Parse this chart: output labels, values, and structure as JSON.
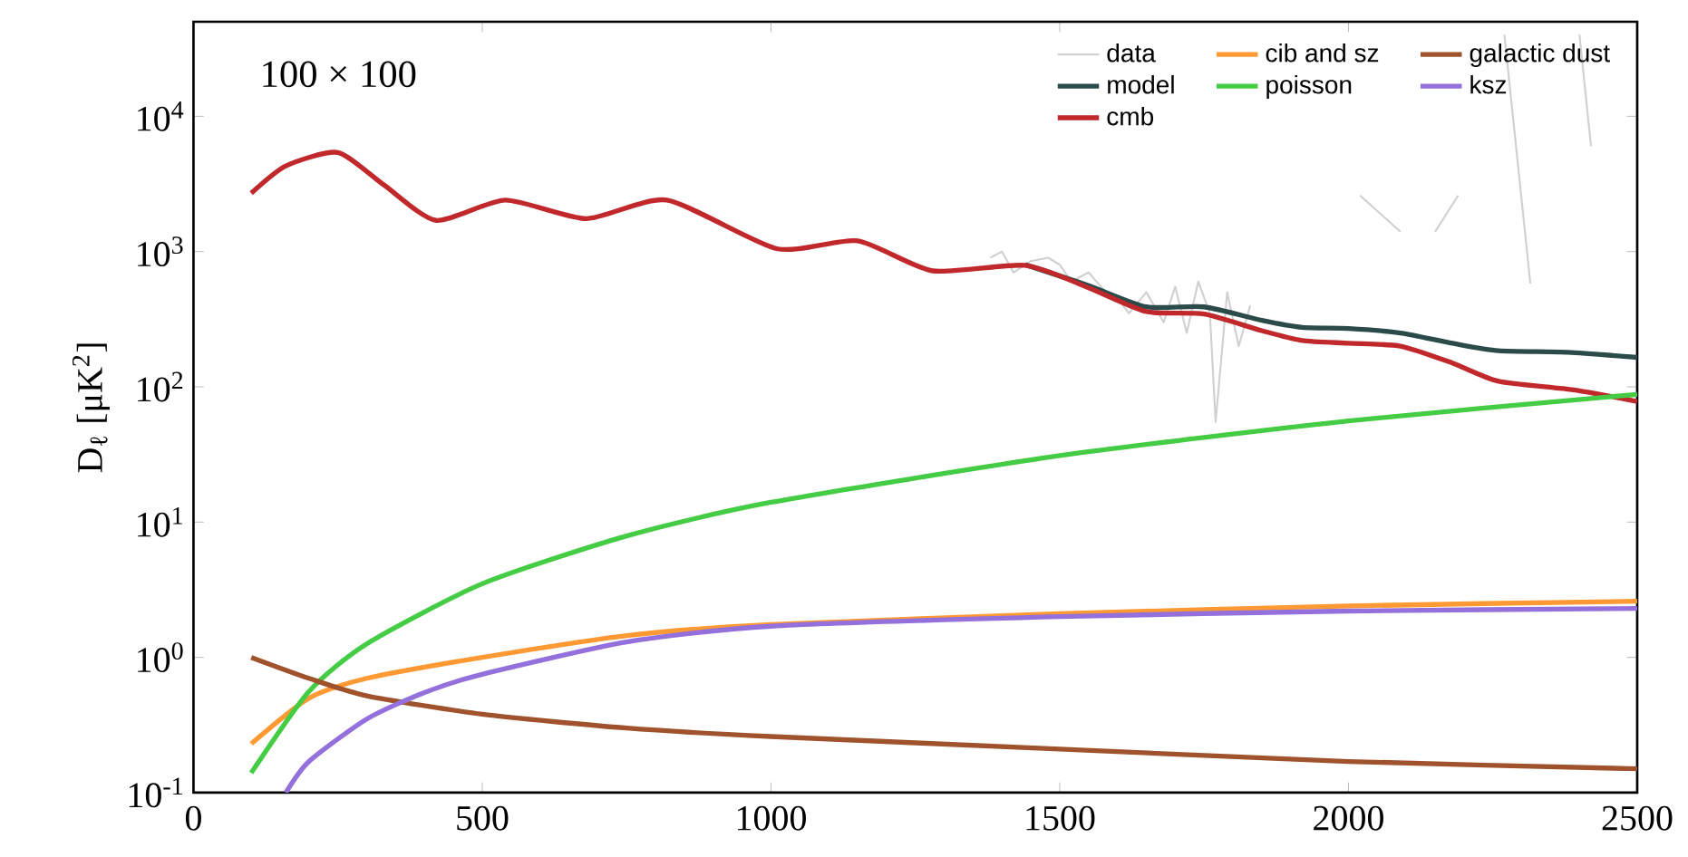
{
  "chart_data": {
    "type": "line",
    "ylabel": "D$_{ℓ}$ [μK$^{2}$]",
    "annotations": [
      "100 × 100"
    ],
    "log": "y",
    "xlim": [
      0,
      2500
    ],
    "ylim": [
      0.1,
      50000
    ],
    "xticks": [
      0,
      500,
      1000,
      1500,
      2000,
      2500
    ],
    "yticks": [
      {
        "value": 0.1,
        "label": "10$^{-1}$"
      },
      {
        "value": 1,
        "label": "10$^{0}$"
      },
      {
        "value": 10,
        "label": "10$^{1}$"
      },
      {
        "value": 100,
        "label": "10$^{2}$"
      },
      {
        "value": 1000,
        "label": "10$^{3}$"
      },
      {
        "value": 10000,
        "label": "10$^{4}$"
      }
    ],
    "grid": false,
    "legend": "top right",
    "series": [
      {
        "name": "data",
        "color": "#d0d0d0",
        "x": [
          1380,
          1400,
          1420,
          1450,
          1480,
          1500,
          1520,
          1550,
          1580,
          1600,
          1620,
          1650,
          1680,
          1700,
          1720,
          1740,
          1760,
          1770,
          1790,
          1810,
          1830,
          1850,
          2020,
          2090,
          2120,
          2150,
          2190,
          2220,
          2270,
          2315,
          2350,
          2400,
          2420
        ],
        "values": [
          900,
          1000,
          700,
          850,
          900,
          800,
          600,
          700,
          500,
          450,
          350,
          500,
          300,
          550,
          250,
          600,
          350,
          55,
          500,
          200,
          400,
          null,
          2600,
          1400,
          null,
          1400,
          2600,
          null,
          40000,
          580,
          null,
          40000,
          6000
        ]
      },
      {
        "name": "model",
        "color": "#2b4a4a",
        "x": [
          1440,
          1550,
          1650,
          1750,
          1850,
          1920,
          2000,
          2090,
          2180,
          2260,
          2380,
          2500
        ],
        "values": [
          800,
          560,
          390,
          390,
          310,
          275,
          270,
          250,
          210,
          185,
          180,
          165
        ]
      },
      {
        "name": "cmb",
        "color": "#c0282c",
        "x": [
          100,
          160,
          250,
          330,
          420,
          540,
          680,
          820,
          1010,
          1150,
          1280,
          1440,
          1550,
          1650,
          1750,
          1850,
          1920,
          2000,
          2090,
          2180,
          2260,
          2390,
          2500
        ],
        "values": [
          2700,
          4300,
          5400,
          3100,
          1700,
          2400,
          1750,
          2400,
          1050,
          1200,
          720,
          790,
          540,
          360,
          345,
          260,
          220,
          210,
          200,
          150,
          110,
          95,
          78
        ]
      },
      {
        "name": "cib and sz",
        "color": "#ff9933",
        "x": [
          100,
          200,
          300,
          500,
          750,
          1000,
          1500,
          2000,
          2500
        ],
        "values": [
          0.23,
          0.5,
          0.7,
          1.0,
          1.45,
          1.75,
          2.1,
          2.4,
          2.6
        ]
      },
      {
        "name": "poisson",
        "color": "#44cc44",
        "x": [
          100,
          200,
          300,
          500,
          750,
          1000,
          1500,
          2000,
          2500
        ],
        "values": [
          0.14,
          0.56,
          1.26,
          3.5,
          7.9,
          14,
          31,
          56,
          88
        ]
      },
      {
        "name": "galactic dust",
        "color": "#a0522d",
        "x": [
          100,
          200,
          300,
          500,
          750,
          1000,
          1500,
          2000,
          2500
        ],
        "values": [
          1.0,
          0.7,
          0.52,
          0.38,
          0.3,
          0.26,
          0.21,
          0.17,
          0.15
        ]
      },
      {
        "name": "ksz",
        "color": "#9370db",
        "x": [
          160,
          200,
          300,
          400,
          500,
          750,
          1000,
          1500,
          2000,
          2500
        ],
        "values": [
          0.1,
          0.17,
          0.35,
          0.55,
          0.75,
          1.3,
          1.7,
          2.0,
          2.2,
          2.3
        ]
      }
    ]
  }
}
